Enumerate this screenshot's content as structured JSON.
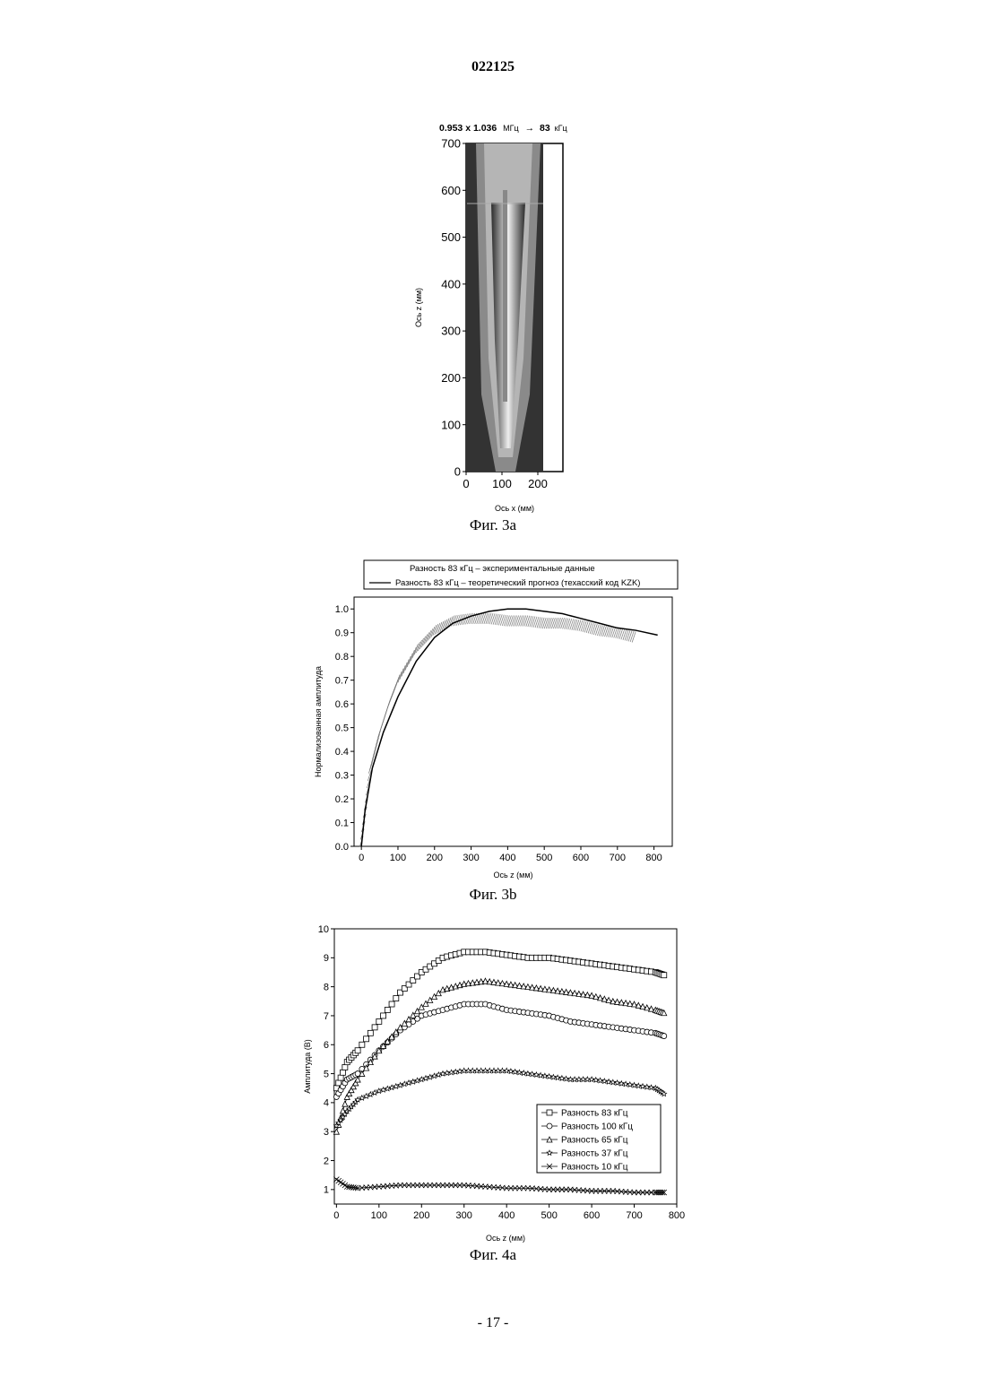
{
  "page": {
    "doc_number": "022125",
    "footer": "- 17 -"
  },
  "figures": {
    "fig3a": {
      "caption": "Фиг. 3a",
      "title_bold": "0.953 x 1.036",
      "title_units": "МГц",
      "title_arrow": "→",
      "title_freq": "83",
      "title_freq_units": "кГц"
    },
    "fig3b": {
      "caption": "Фиг. 3b"
    },
    "fig4a": {
      "caption": "Фиг. 4a"
    }
  },
  "chart_data": [
    {
      "type": "heatmap",
      "id": "fig3a",
      "title": "0.953 x 1.036 МГц → 83 кГц",
      "xlabel": "Ось x (мм)",
      "ylabel": "Ось z (мм)",
      "xlim": [
        0,
        270
      ],
      "ylim": [
        0,
        700
      ],
      "xticks": [
        0,
        100,
        200
      ],
      "yticks": [
        0,
        100,
        200,
        300,
        400,
        500,
        600,
        700
      ],
      "colorscale": "grayscale"
    },
    {
      "type": "line",
      "id": "fig3b",
      "xlabel": "Ось z (мм)",
      "ylabel": "Нормализованная амплитуда",
      "xlim": [
        -20,
        850
      ],
      "ylim": [
        0,
        1.05
      ],
      "xticks": [
        0,
        100,
        200,
        300,
        400,
        500,
        600,
        700,
        800
      ],
      "yticks": [
        0.0,
        0.1,
        0.2,
        0.3,
        0.4,
        0.5,
        0.6,
        0.7,
        0.8,
        0.9,
        1.0
      ],
      "legend_position": "top",
      "series": [
        {
          "name": "Разность 83 кГц – экспериментальные данные",
          "style": "hatch",
          "x": [
            0,
            25,
            50,
            75,
            100,
            150,
            200,
            250,
            300,
            350,
            400,
            450,
            500,
            550,
            600,
            650,
            700,
            750
          ],
          "y": [
            0.02,
            0.33,
            0.48,
            0.6,
            0.7,
            0.83,
            0.91,
            0.95,
            0.96,
            0.96,
            0.95,
            0.95,
            0.94,
            0.94,
            0.93,
            0.91,
            0.9,
            0.88
          ]
        },
        {
          "name": "Разность 83 кГц – теоретический прогноз (техасский код KZK)",
          "style": "line",
          "x": [
            0,
            10,
            30,
            60,
            100,
            150,
            200,
            250,
            300,
            350,
            400,
            450,
            500,
            550,
            600,
            650,
            700,
            750,
            810
          ],
          "y": [
            0.0,
            0.15,
            0.33,
            0.48,
            0.63,
            0.78,
            0.88,
            0.94,
            0.97,
            0.99,
            1.0,
            1.0,
            0.99,
            0.98,
            0.96,
            0.94,
            0.92,
            0.91,
            0.89
          ]
        }
      ]
    },
    {
      "type": "scatter",
      "id": "fig4a",
      "xlabel": "Ось z (мм)",
      "ylabel": "Амплитуда (В)",
      "xlim": [
        -5,
        800
      ],
      "ylim": [
        0.5,
        10
      ],
      "xticks": [
        0,
        100,
        200,
        300,
        400,
        500,
        600,
        700,
        800
      ],
      "yticks": [
        1,
        2,
        3,
        4,
        5,
        6,
        7,
        8,
        9,
        10
      ],
      "legend_position": "bottom-right",
      "series": [
        {
          "name": "Разность 83 кГц",
          "marker": "square",
          "x": [
            0,
            25,
            50,
            100,
            150,
            200,
            250,
            300,
            350,
            400,
            450,
            500,
            550,
            600,
            650,
            700,
            750,
            770
          ],
          "y": [
            4.5,
            5.4,
            5.8,
            6.8,
            7.8,
            8.5,
            9.0,
            9.2,
            9.2,
            9.1,
            9.0,
            9.0,
            8.9,
            8.8,
            8.7,
            8.6,
            8.5,
            8.4
          ]
        },
        {
          "name": "Разность 100 кГц",
          "marker": "circle",
          "x": [
            0,
            25,
            50,
            100,
            150,
            200,
            250,
            300,
            350,
            400,
            450,
            500,
            550,
            600,
            650,
            700,
            750,
            770
          ],
          "y": [
            4.2,
            4.8,
            5.0,
            5.8,
            6.5,
            7.0,
            7.2,
            7.4,
            7.4,
            7.2,
            7.1,
            7.0,
            6.8,
            6.7,
            6.6,
            6.5,
            6.4,
            6.3
          ]
        },
        {
          "name": "Разность 65 кГц",
          "marker": "triangle",
          "x": [
            0,
            25,
            50,
            100,
            150,
            200,
            250,
            300,
            350,
            400,
            450,
            500,
            550,
            600,
            650,
            700,
            750,
            770
          ],
          "y": [
            3.0,
            4.2,
            4.8,
            5.8,
            6.6,
            7.3,
            7.9,
            8.1,
            8.2,
            8.1,
            8.0,
            7.9,
            7.8,
            7.7,
            7.5,
            7.4,
            7.2,
            7.1
          ]
        },
        {
          "name": "Разность 37 кГц",
          "marker": "star",
          "x": [
            0,
            25,
            50,
            100,
            150,
            200,
            250,
            300,
            350,
            400,
            450,
            500,
            550,
            600,
            650,
            700,
            750,
            770
          ],
          "y": [
            3.2,
            3.7,
            4.1,
            4.4,
            4.6,
            4.8,
            5.0,
            5.1,
            5.1,
            5.1,
            5.0,
            4.9,
            4.8,
            4.8,
            4.7,
            4.6,
            4.5,
            4.3
          ]
        },
        {
          "name": "Разность 10 кГц",
          "marker": "x",
          "x": [
            0,
            25,
            50,
            100,
            150,
            200,
            250,
            300,
            350,
            400,
            450,
            500,
            550,
            600,
            650,
            700,
            750,
            770
          ],
          "y": [
            1.35,
            1.1,
            1.05,
            1.1,
            1.15,
            1.15,
            1.15,
            1.15,
            1.1,
            1.05,
            1.05,
            1.0,
            1.0,
            0.95,
            0.95,
            0.9,
            0.9,
            0.9
          ]
        }
      ]
    }
  ]
}
